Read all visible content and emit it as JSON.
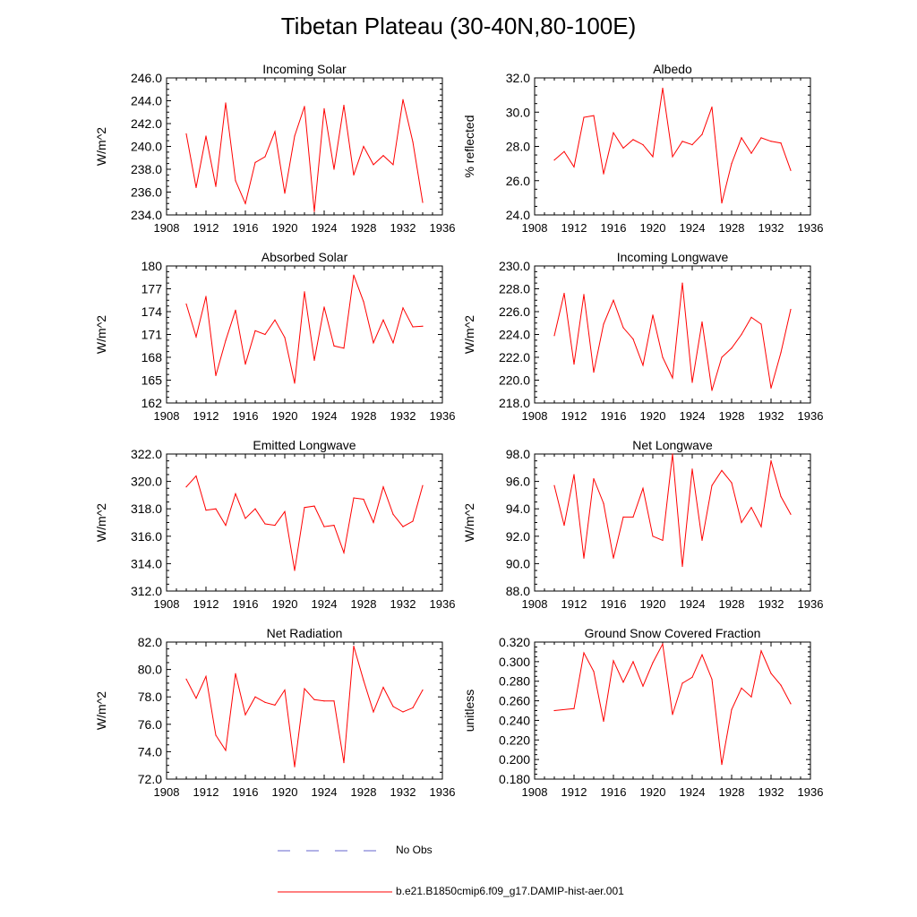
{
  "title": "Tibetan Plateau (30-40N,80-100E)",
  "colors": {
    "model": "#ff0000",
    "obs": "#6666cc",
    "axis": "#000000"
  },
  "legend": {
    "obs_label": "No Obs",
    "model_label": "b.e21.B1850cmip6.f09_g17.DAMIP-hist-aer.001"
  },
  "chart_data": [
    {
      "type": "line",
      "title": "Incoming Solar",
      "ylabel": "W/m^2",
      "xlim": [
        1908,
        1936
      ],
      "xticks": [
        1908,
        1912,
        1916,
        1920,
        1924,
        1928,
        1932,
        1936
      ],
      "ylim": [
        234,
        246
      ],
      "yticks": [
        "234.0",
        "236.0",
        "238.0",
        "240.0",
        "242.0",
        "244.0",
        "246.0"
      ],
      "x": [
        1910,
        1911,
        1912,
        1913,
        1914,
        1915,
        1916,
        1917,
        1918,
        1919,
        1920,
        1921,
        1922,
        1923,
        1924,
        1925,
        1926,
        1927,
        1928,
        1929,
        1930,
        1931,
        1932,
        1933,
        1934
      ],
      "series": [
        {
          "values": [
            241.1,
            236.4,
            240.9,
            236.5,
            243.8,
            237.0,
            235.0,
            238.6,
            239.1,
            241.3,
            235.9,
            240.9,
            243.5,
            234.3,
            243.3,
            238.0,
            243.6,
            237.5,
            240.0,
            238.4,
            239.2,
            238.4,
            244.1,
            240.4,
            235.1
          ]
        }
      ]
    },
    {
      "type": "line",
      "title": "Albedo",
      "ylabel": "% reflected",
      "xlim": [
        1908,
        1936
      ],
      "xticks": [
        1908,
        1912,
        1916,
        1920,
        1924,
        1928,
        1932,
        1936
      ],
      "ylim": [
        24,
        32
      ],
      "yticks": [
        "24.0",
        "26.0",
        "28.0",
        "30.0",
        "32.0"
      ],
      "x": [
        1910,
        1911,
        1912,
        1913,
        1914,
        1915,
        1916,
        1917,
        1918,
        1919,
        1920,
        1921,
        1922,
        1923,
        1924,
        1925,
        1926,
        1927,
        1928,
        1929,
        1930,
        1931,
        1932,
        1933,
        1934
      ],
      "series": [
        {
          "values": [
            27.2,
            27.7,
            26.8,
            29.7,
            29.8,
            26.4,
            28.8,
            27.9,
            28.4,
            28.1,
            27.4,
            31.4,
            27.4,
            28.3,
            28.1,
            28.7,
            30.3,
            24.7,
            27.0,
            28.5,
            27.6,
            28.5,
            28.3,
            28.2,
            26.6
          ]
        }
      ]
    },
    {
      "type": "line",
      "title": "Absorbed Solar",
      "ylabel": "W/m^2",
      "xlim": [
        1908,
        1936
      ],
      "xticks": [
        1908,
        1912,
        1916,
        1920,
        1924,
        1928,
        1932,
        1936
      ],
      "ylim": [
        162,
        180
      ],
      "yticks": [
        "162",
        "165",
        "168",
        "171",
        "174",
        "177",
        "180"
      ],
      "x": [
        1910,
        1911,
        1912,
        1913,
        1914,
        1915,
        1916,
        1917,
        1918,
        1919,
        1920,
        1921,
        1922,
        1923,
        1924,
        1925,
        1926,
        1927,
        1928,
        1929,
        1930,
        1931,
        1932,
        1933,
        1934
      ],
      "series": [
        {
          "values": [
            175.0,
            170.7,
            176.0,
            165.6,
            170.2,
            174.2,
            167.1,
            171.5,
            171.0,
            172.9,
            170.6,
            164.6,
            176.6,
            167.6,
            174.6,
            169.5,
            169.2,
            178.8,
            175.3,
            169.9,
            172.9,
            169.9,
            174.5,
            172.0,
            172.1
          ]
        }
      ]
    },
    {
      "type": "line",
      "title": "Incoming Longwave",
      "ylabel": "W/m^2",
      "xlim": [
        1908,
        1936
      ],
      "xticks": [
        1908,
        1912,
        1916,
        1920,
        1924,
        1928,
        1932,
        1936
      ],
      "ylim": [
        218,
        230
      ],
      "yticks": [
        "218.0",
        "220.0",
        "222.0",
        "224.0",
        "226.0",
        "228.0",
        "230.0"
      ],
      "x": [
        1910,
        1911,
        1912,
        1913,
        1914,
        1915,
        1916,
        1917,
        1918,
        1919,
        1920,
        1921,
        1922,
        1923,
        1924,
        1925,
        1926,
        1927,
        1928,
        1929,
        1930,
        1931,
        1932,
        1933,
        1934
      ],
      "series": [
        {
          "values": [
            223.9,
            227.6,
            221.4,
            227.5,
            220.7,
            224.9,
            227.0,
            224.6,
            223.6,
            221.3,
            225.7,
            222.0,
            220.2,
            228.5,
            219.8,
            225.1,
            219.1,
            222.0,
            222.8,
            224.0,
            225.5,
            224.9,
            219.3,
            222.4,
            226.2
          ]
        }
      ]
    },
    {
      "type": "line",
      "title": "Emitted Longwave",
      "ylabel": "W/m^2",
      "xlim": [
        1908,
        1936
      ],
      "xticks": [
        1908,
        1912,
        1916,
        1920,
        1924,
        1928,
        1932,
        1936
      ],
      "ylim": [
        312,
        322
      ],
      "yticks": [
        "312.0",
        "314.0",
        "316.0",
        "318.0",
        "320.0",
        "322.0"
      ],
      "x": [
        1910,
        1911,
        1912,
        1913,
        1914,
        1915,
        1916,
        1917,
        1918,
        1919,
        1920,
        1921,
        1922,
        1923,
        1924,
        1925,
        1926,
        1927,
        1928,
        1929,
        1930,
        1931,
        1932,
        1933,
        1934
      ],
      "series": [
        {
          "values": [
            319.6,
            320.4,
            317.9,
            318.0,
            316.8,
            319.1,
            317.3,
            318.0,
            316.9,
            316.8,
            317.8,
            313.5,
            318.1,
            318.2,
            316.7,
            316.8,
            314.8,
            318.8,
            318.7,
            317.0,
            319.6,
            317.6,
            316.7,
            317.1,
            319.7
          ]
        }
      ]
    },
    {
      "type": "line",
      "title": "Net Longwave",
      "ylabel": "W/m^2",
      "xlim": [
        1908,
        1936
      ],
      "xticks": [
        1908,
        1912,
        1916,
        1920,
        1924,
        1928,
        1932,
        1936
      ],
      "ylim": [
        88,
        98
      ],
      "yticks": [
        "88.0",
        "90.0",
        "92.0",
        "94.0",
        "96.0",
        "98.0"
      ],
      "x": [
        1910,
        1911,
        1912,
        1913,
        1914,
        1915,
        1916,
        1917,
        1918,
        1919,
        1920,
        1921,
        1922,
        1923,
        1924,
        1925,
        1926,
        1927,
        1928,
        1929,
        1930,
        1931,
        1932,
        1933,
        1934
      ],
      "series": [
        {
          "values": [
            95.7,
            92.8,
            96.5,
            90.4,
            96.2,
            94.4,
            90.4,
            93.4,
            93.4,
            95.5,
            92.0,
            91.7,
            98.0,
            89.8,
            96.9,
            91.7,
            95.7,
            96.8,
            95.9,
            93.0,
            94.1,
            92.7,
            97.5,
            94.9,
            93.6
          ]
        }
      ]
    },
    {
      "type": "line",
      "title": "Net Radiation",
      "ylabel": "W/m^2",
      "xlim": [
        1908,
        1936
      ],
      "xticks": [
        1908,
        1912,
        1916,
        1920,
        1924,
        1928,
        1932,
        1936
      ],
      "ylim": [
        72,
        82
      ],
      "yticks": [
        "72.0",
        "74.0",
        "76.0",
        "78.0",
        "80.0",
        "82.0"
      ],
      "x": [
        1910,
        1911,
        1912,
        1913,
        1914,
        1915,
        1916,
        1917,
        1918,
        1919,
        1920,
        1921,
        1922,
        1923,
        1924,
        1925,
        1926,
        1927,
        1928,
        1929,
        1930,
        1931,
        1932,
        1933,
        1934
      ],
      "series": [
        {
          "values": [
            79.3,
            77.9,
            79.5,
            75.2,
            74.1,
            79.7,
            76.7,
            78.0,
            77.6,
            77.4,
            78.5,
            72.9,
            78.6,
            77.8,
            77.7,
            77.7,
            73.2,
            81.7,
            79.2,
            76.9,
            78.7,
            77.3,
            76.9,
            77.2,
            78.5
          ]
        }
      ]
    },
    {
      "type": "line",
      "title": "Ground Snow Covered Fraction",
      "ylabel": "unitless",
      "xlim": [
        1908,
        1936
      ],
      "xticks": [
        1908,
        1912,
        1916,
        1920,
        1924,
        1928,
        1932,
        1936
      ],
      "ylim": [
        0.18,
        0.32
      ],
      "yticks": [
        "0.180",
        "0.200",
        "0.220",
        "0.240",
        "0.260",
        "0.280",
        "0.300",
        "0.320"
      ],
      "x": [
        1910,
        1912,
        1913,
        1914,
        1915,
        1916,
        1917,
        1918,
        1919,
        1920,
        1921,
        1922,
        1923,
        1924,
        1925,
        1926,
        1927,
        1928,
        1929,
        1930,
        1931,
        1932,
        1933,
        1934
      ],
      "series": [
        {
          "values": [
            0.25,
            0.252,
            0.309,
            0.29,
            0.239,
            0.301,
            0.279,
            0.3,
            0.275,
            0.299,
            0.318,
            0.246,
            0.278,
            0.284,
            0.307,
            0.282,
            0.195,
            0.251,
            0.273,
            0.264,
            0.311,
            0.288,
            0.276,
            0.257
          ]
        }
      ]
    }
  ]
}
